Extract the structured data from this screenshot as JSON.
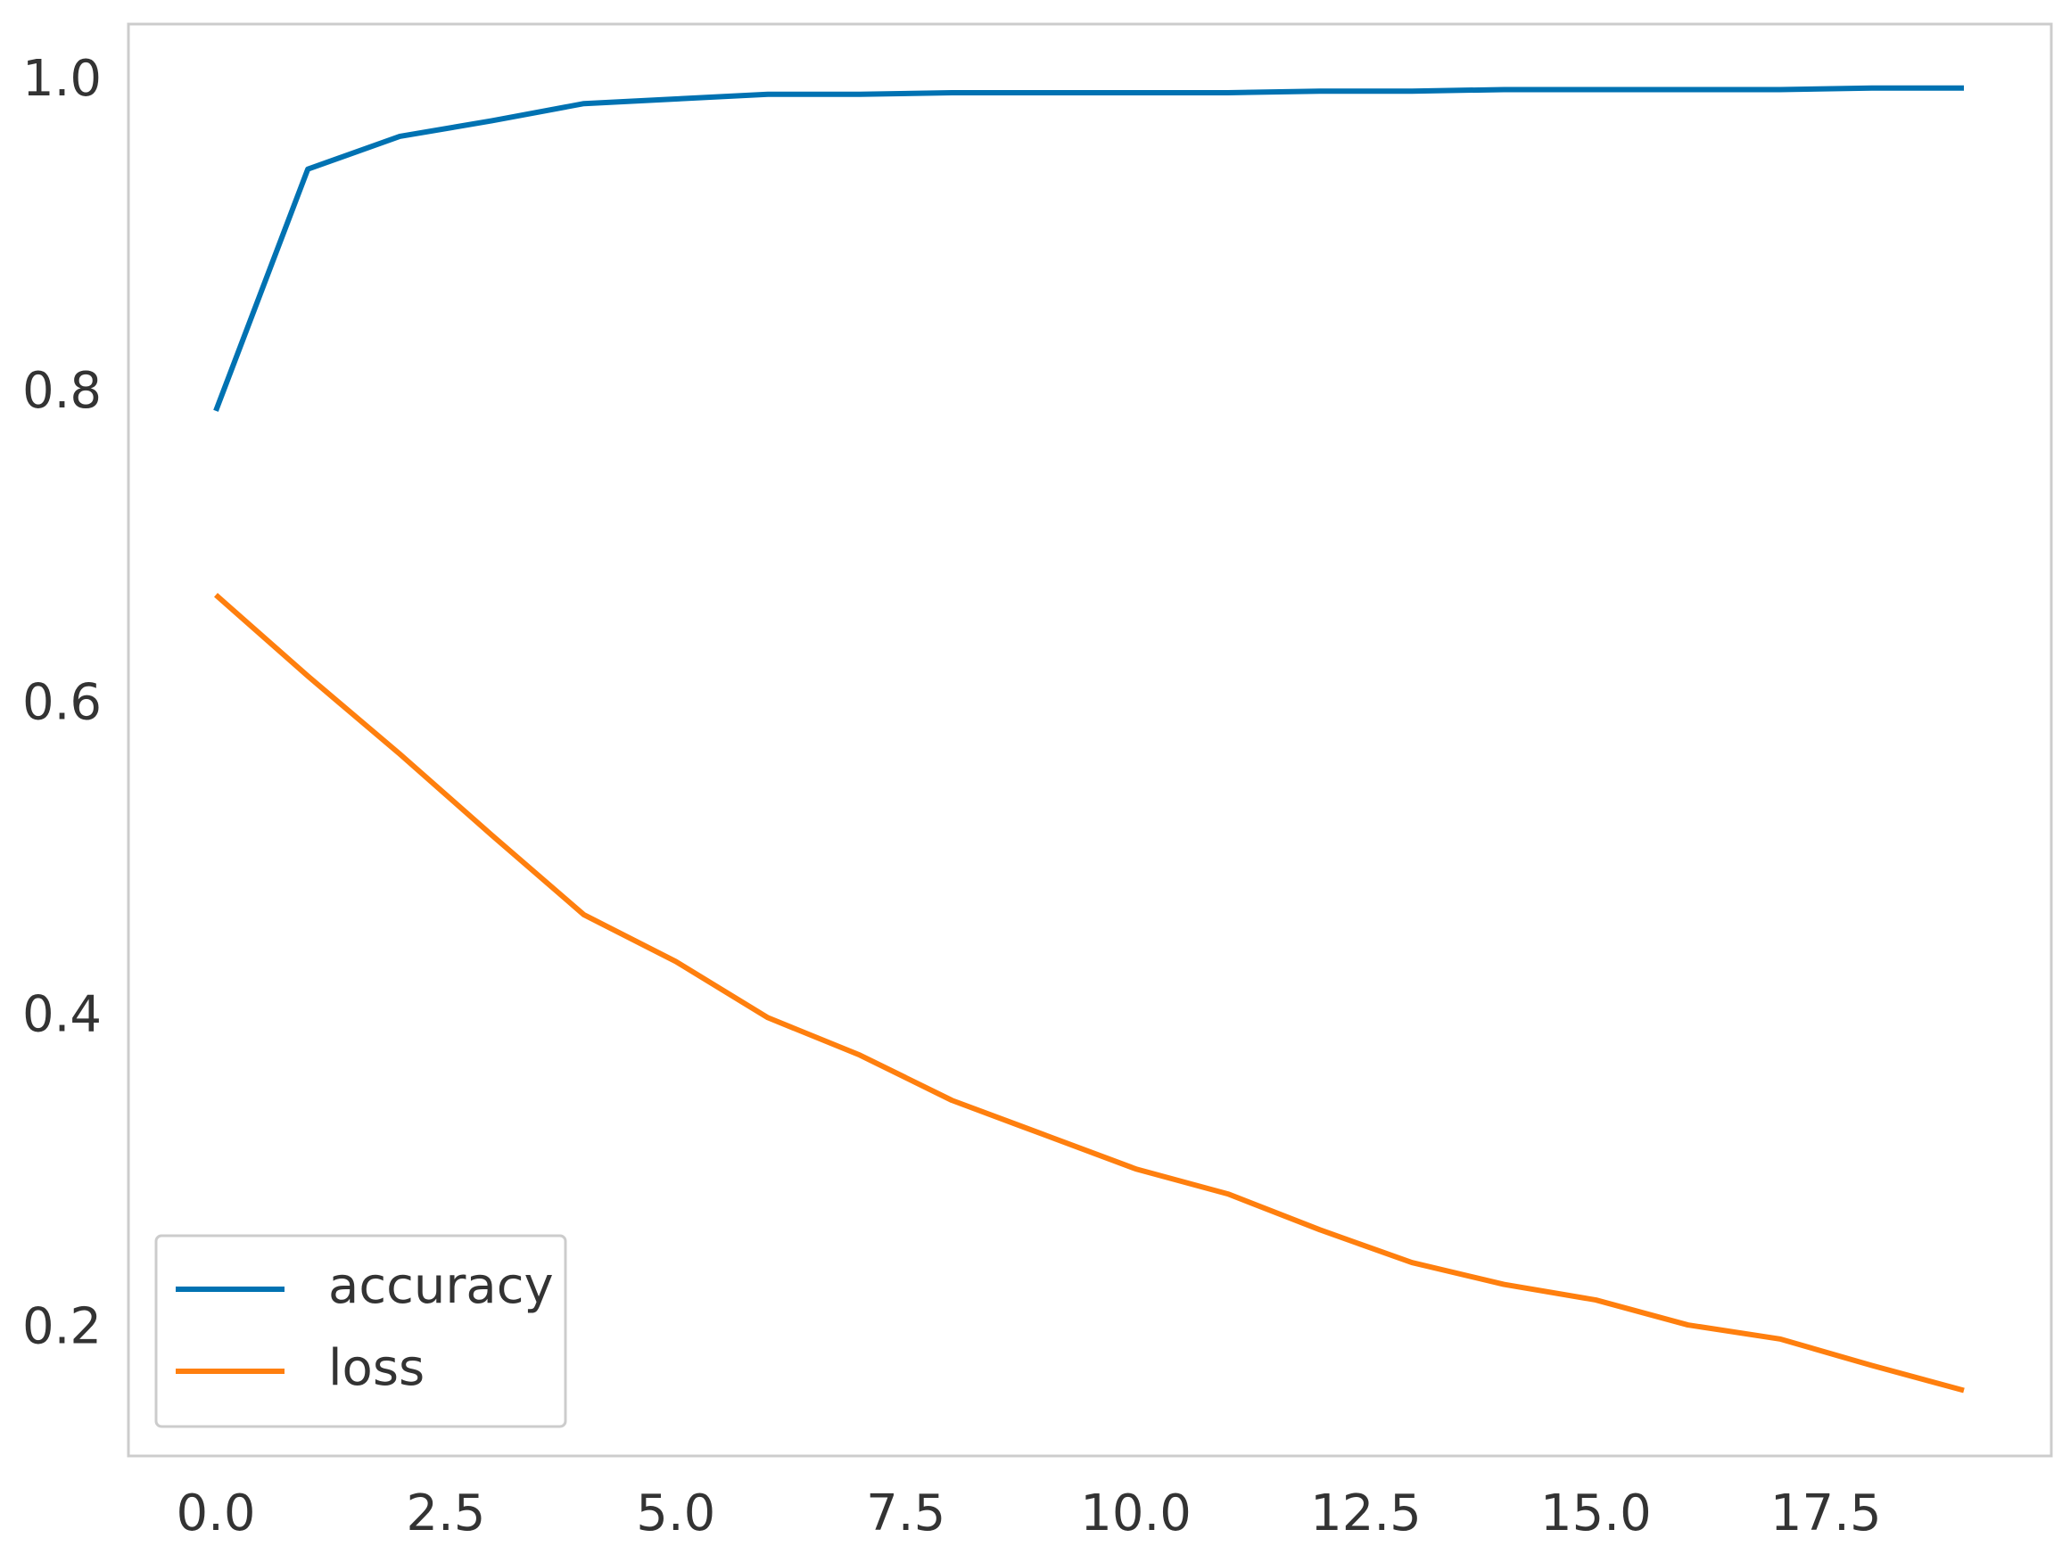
{
  "chart_data": {
    "type": "line",
    "x": [
      0,
      1,
      2,
      3,
      4,
      5,
      6,
      7,
      8,
      9,
      10,
      11,
      12,
      13,
      14,
      15,
      16,
      17,
      18,
      19
    ],
    "series": [
      {
        "name": "accuracy",
        "color": "#0072b2",
        "values": [
          0.789,
          0.944,
          0.965,
          0.975,
          0.986,
          0.989,
          0.992,
          0.992,
          0.993,
          0.993,
          0.993,
          0.993,
          0.994,
          0.994,
          0.995,
          0.995,
          0.995,
          0.995,
          0.996,
          0.996
        ]
      },
      {
        "name": "loss",
        "color": "#ff7f0e",
        "values": [
          0.671,
          0.619,
          0.569,
          0.517,
          0.466,
          0.436,
          0.4,
          0.376,
          0.347,
          0.325,
          0.303,
          0.287,
          0.264,
          0.243,
          0.229,
          0.219,
          0.203,
          0.194,
          0.177,
          0.161
        ]
      }
    ],
    "xlim": [
      -0.95,
      19.95
    ],
    "xticks": [
      {
        "value": 0,
        "label": "0.0"
      },
      2.5,
      {
        "value": 5,
        "label": "5.0"
      },
      7.5,
      {
        "value": 10,
        "label": "10.0"
      },
      12.5,
      {
        "value": 15,
        "label": "15.0"
      },
      17.5
    ],
    "ylim": [
      0.119,
      1.037
    ],
    "yticks": [
      0.2,
      0.4,
      0.6,
      0.8,
      {
        "value": 1,
        "label": "1.0"
      }
    ],
    "grid": false,
    "legend": "lower left"
  }
}
